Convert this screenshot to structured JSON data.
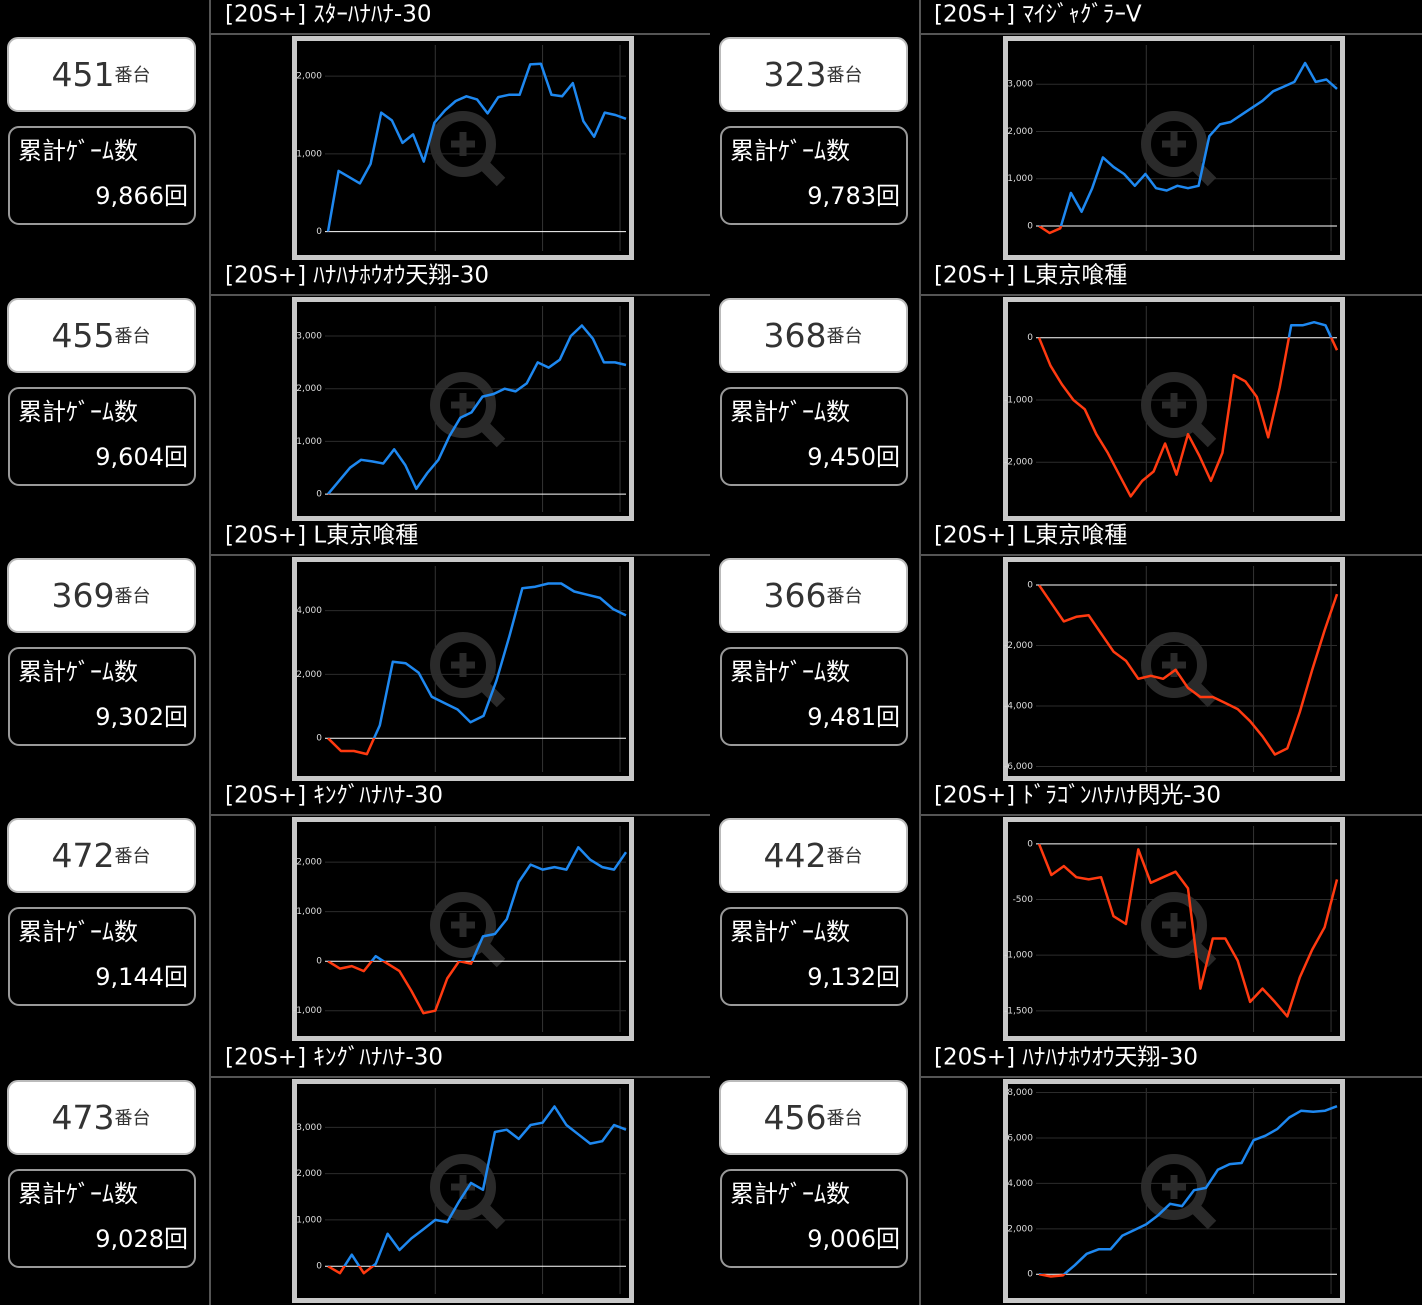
{
  "cards": [
    {
      "number": "451",
      "number_suffix": "番台",
      "games_label": "累計ｹﾞｰﾑ数",
      "games": "9,866回"
    },
    {
      "number": "323",
      "number_suffix": "番台",
      "games_label": "累計ｹﾞｰﾑ数",
      "games": "9,783回"
    },
    {
      "number": "455",
      "number_suffix": "番台",
      "games_label": "累計ｹﾞｰﾑ数",
      "games": "9,604回"
    },
    {
      "number": "368",
      "number_suffix": "番台",
      "games_label": "累計ｹﾞｰﾑ数",
      "games": "9,450回"
    },
    {
      "number": "369",
      "number_suffix": "番台",
      "games_label": "累計ｹﾞｰﾑ数",
      "games": "9,302回"
    },
    {
      "number": "366",
      "number_suffix": "番台",
      "games_label": "累計ｹﾞｰﾑ数",
      "games": "9,481回"
    },
    {
      "number": "472",
      "number_suffix": "番台",
      "games_label": "累計ｹﾞｰﾑ数",
      "games": "9,144回"
    },
    {
      "number": "442",
      "number_suffix": "番台",
      "games_label": "累計ｹﾞｰﾑ数",
      "games": "9,132回"
    },
    {
      "number": "473",
      "number_suffix": "番台",
      "games_label": "累計ｹﾞｰﾑ数",
      "games": "9,028回"
    },
    {
      "number": "456",
      "number_suffix": "番台",
      "games_label": "累計ｹﾞｰﾑ数",
      "games": "9,006回"
    }
  ],
  "chart_data": [
    {
      "type": "line",
      "title": "[20S+] ｽﾀｰﾊﾅﾊﾅ-30",
      "color_positive": "#1e88f0",
      "color_negative": "#ff3a10",
      "values": [
        0,
        780,
        700,
        620,
        870,
        1530,
        1430,
        1140,
        1250,
        900,
        1400,
        1560,
        1680,
        1740,
        1700,
        1520,
        1730,
        1760,
        1760,
        2150,
        2160,
        1760,
        1740,
        1910,
        1420,
        1220,
        1530,
        1500,
        1450
      ],
      "ylim": [
        -250,
        2400
      ],
      "yticks": [
        0,
        {
          "value": 1000,
          "label": "1,000"
        },
        {
          "value": 2000,
          "label": "2,000"
        }
      ]
    },
    {
      "type": "line",
      "title": "[20S+] ﾏｲｼﾞｬｸﾞﾗｰV",
      "color_positive": "#1e88f0",
      "color_negative": "#ff3a10",
      "values": [
        0,
        -150,
        -50,
        700,
        300,
        800,
        1450,
        1250,
        1100,
        850,
        1100,
        800,
        750,
        850,
        800,
        850,
        1900,
        2150,
        2200,
        2350,
        2500,
        2650,
        2850,
        2950,
        3050,
        3450,
        3050,
        3100,
        2900
      ],
      "ylim": [
        -530,
        3830
      ],
      "yticks": [
        0,
        {
          "value": 1000,
          "label": "1,000"
        },
        {
          "value": 2000,
          "label": "2,000"
        },
        {
          "value": 3000,
          "label": "3,000"
        }
      ]
    },
    {
      "type": "line",
      "title": "[20S+] ﾊﾅﾊﾅﾎｳｵｳ天翔-30",
      "color_positive": "#1e88f0",
      "color_negative": "#ff3a10",
      "values": [
        0,
        250,
        500,
        650,
        620,
        580,
        850,
        550,
        100,
        400,
        650,
        1100,
        1450,
        1550,
        1850,
        1900,
        2000,
        1950,
        2100,
        2500,
        2400,
        2550,
        3000,
        3200,
        2950,
        2500,
        2500,
        2450
      ],
      "ylim": [
        -340,
        3570
      ],
      "yticks": [
        0,
        {
          "value": 1000,
          "label": "1,000"
        },
        {
          "value": 2000,
          "label": "2,000"
        },
        {
          "value": 3000,
          "label": "3,000"
        }
      ]
    },
    {
      "type": "line",
      "title": "[20S+] L東京喰種",
      "color_positive": "#1e88f0",
      "color_negative": "#ff3a10",
      "values": [
        0,
        -450,
        -750,
        -1000,
        -1150,
        -1550,
        -1850,
        -2200,
        -2550,
        -2300,
        -2150,
        -1700,
        -2200,
        -1550,
        -1900,
        -2300,
        -1850,
        -600,
        -700,
        -950,
        -1600,
        -800,
        200,
        200,
        250,
        200,
        -200
      ],
      "ylim": [
        -2800,
        510
      ],
      "yticks": [
        {
          "value": -2000,
          "label": "-2,000"
        },
        {
          "value": -1000,
          "label": "-1,000"
        },
        0
      ]
    },
    {
      "type": "line",
      "title": "[20S+] L東京喰種",
      "color_positive": "#1e88f0",
      "color_negative": "#ff3a10",
      "values": [
        0,
        -400,
        -400,
        -500,
        400,
        2400,
        2350,
        2050,
        1300,
        1100,
        900,
        500,
        700,
        1800,
        3200,
        4700,
        4750,
        4850,
        4850,
        4600,
        4500,
        4400,
        4050,
        3850
      ],
      "ylim": [
        -1060,
        5400
      ],
      "yticks": [
        0,
        {
          "value": 2000,
          "label": "2,000"
        },
        {
          "value": 4000,
          "label": "4,000"
        }
      ]
    },
    {
      "type": "line",
      "title": "[20S+] L東京喰種",
      "color_positive": "#1e88f0",
      "color_negative": "#ff3a10",
      "values": [
        0,
        -600,
        -1200,
        -1050,
        -1000,
        -1600,
        -2200,
        -2500,
        -3100,
        -3000,
        -3100,
        -2800,
        -3400,
        -3700,
        -3700,
        -3900,
        -4100,
        -4500,
        -5000,
        -5600,
        -5400,
        -4200,
        -2800,
        -1500,
        -300
      ],
      "ylim": [
        -6180,
        630
      ],
      "yticks": [
        {
          "value": -6000,
          "label": "-6,000"
        },
        {
          "value": -4000,
          "label": "-4,000"
        },
        {
          "value": -2000,
          "label": "-2,000"
        },
        0
      ]
    },
    {
      "type": "line",
      "title": "[20S+] ｷﾝｸﾞﾊﾅﾊﾅ-30",
      "color_positive": "#1e88f0",
      "color_negative": "#ff3a10",
      "values": [
        0,
        -150,
        -100,
        -200,
        100,
        -50,
        -200,
        -600,
        -1050,
        -1000,
        -350,
        0,
        -50,
        500,
        550,
        850,
        1600,
        1950,
        1850,
        1900,
        1850,
        2300,
        2050,
        1900,
        1850,
        2200
      ],
      "ylim": [
        -1430,
        2730
      ],
      "yticks": [
        {
          "value": -1000,
          "label": "-1,000"
        },
        0,
        {
          "value": 1000,
          "label": "1,000"
        },
        {
          "value": 2000,
          "label": "2,000"
        }
      ]
    },
    {
      "type": "line",
      "title": "[20S+] ﾄﾞﾗｺﾞﾝﾊﾅﾊﾅ閃光-30",
      "color_positive": "#1e88f0",
      "color_negative": "#ff3a10",
      "values": [
        0,
        -280,
        -200,
        -300,
        -320,
        -300,
        -650,
        -720,
        -50,
        -350,
        -300,
        -250,
        -400,
        -1300,
        -850,
        -850,
        -1050,
        -1420,
        -1300,
        -1420,
        -1550,
        -1200,
        -950,
        -750,
        -320
      ],
      "ylim": [
        -1690,
        160
      ],
      "yticks": [
        {
          "value": -1500,
          "label": "-1,500"
        },
        {
          "value": -1000,
          "label": "-1,000"
        },
        -500,
        0
      ]
    },
    {
      "type": "line",
      "title": "[20S+] ｷﾝｸﾞﾊﾅﾊﾅ-30",
      "color_positive": "#1e88f0",
      "color_negative": "#ff3a10",
      "values": [
        0,
        -150,
        250,
        -150,
        50,
        700,
        350,
        600,
        800,
        1000,
        950,
        1400,
        1800,
        1650,
        2900,
        2950,
        2750,
        3050,
        3100,
        3450,
        3050,
        2850,
        2650,
        2700,
        3050,
        2950
      ],
      "ylim": [
        -600,
        3850
      ],
      "yticks": [
        0,
        {
          "value": 1000,
          "label": "1,000"
        },
        {
          "value": 2000,
          "label": "2,000"
        },
        {
          "value": 3000,
          "label": "3,000"
        }
      ]
    },
    {
      "type": "line",
      "title": "[20S+] ﾊﾅﾊﾅﾎｳｵｳ天翔-30",
      "color_positive": "#1e88f0",
      "color_negative": "#ff3a10",
      "values": [
        0,
        -100,
        -50,
        400,
        900,
        1100,
        1100,
        1700,
        1950,
        2200,
        2600,
        3100,
        3000,
        3700,
        3800,
        4600,
        4850,
        4900,
        5900,
        6100,
        6400,
        6900,
        7200,
        7150,
        7200,
        7400
      ],
      "ylim": [
        -870,
        8200
      ],
      "yticks": [
        0,
        {
          "value": 2000,
          "label": "2,000"
        },
        {
          "value": 4000,
          "label": "4,000"
        },
        {
          "value": 6000,
          "label": "6,000"
        },
        {
          "value": 8000,
          "label": "8,000"
        }
      ]
    }
  ]
}
